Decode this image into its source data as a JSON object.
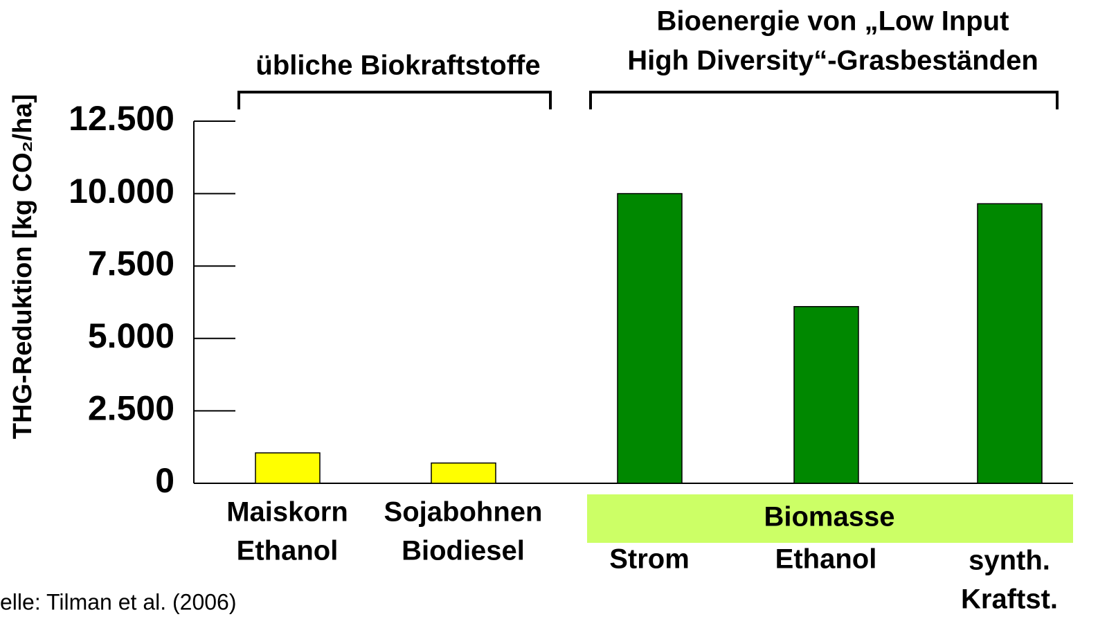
{
  "chart_data": {
    "type": "bar",
    "ylabel": "THG-Reduktion [kg CO₂/ha]",
    "categories": [
      [
        "Maiskorn",
        "Ethanol"
      ],
      [
        "Sojabohnen",
        "Biodiesel"
      ],
      [
        "Strom"
      ],
      [
        "Ethanol"
      ],
      [
        "synth.",
        "Kraftst."
      ]
    ],
    "values": [
      1050,
      700,
      10000,
      6100,
      9650
    ],
    "colors": [
      "#ffff00",
      "#ffff00",
      "#008800",
      "#008800",
      "#008800"
    ],
    "ylim": [
      0,
      12500
    ],
    "yticks": [
      0,
      {
        "value": 2500,
        "label": "2.500"
      },
      {
        "value": 5000,
        "label": "5.000"
      },
      {
        "value": 7500,
        "label": "7.500"
      },
      {
        "value": 10000,
        "label": "10.000"
      },
      {
        "value": 12500,
        "label": "12.500"
      }
    ],
    "groups": [
      {
        "label": [
          "übliche Biokraftstoffe"
        ]
      },
      {
        "label": [
          "Bioenergie von „Low Input",
          "High Diversity“-Grasbeständen"
        ],
        "band": "Biomasse"
      }
    ],
    "source": "elle: Tilman et al. (2006)"
  }
}
